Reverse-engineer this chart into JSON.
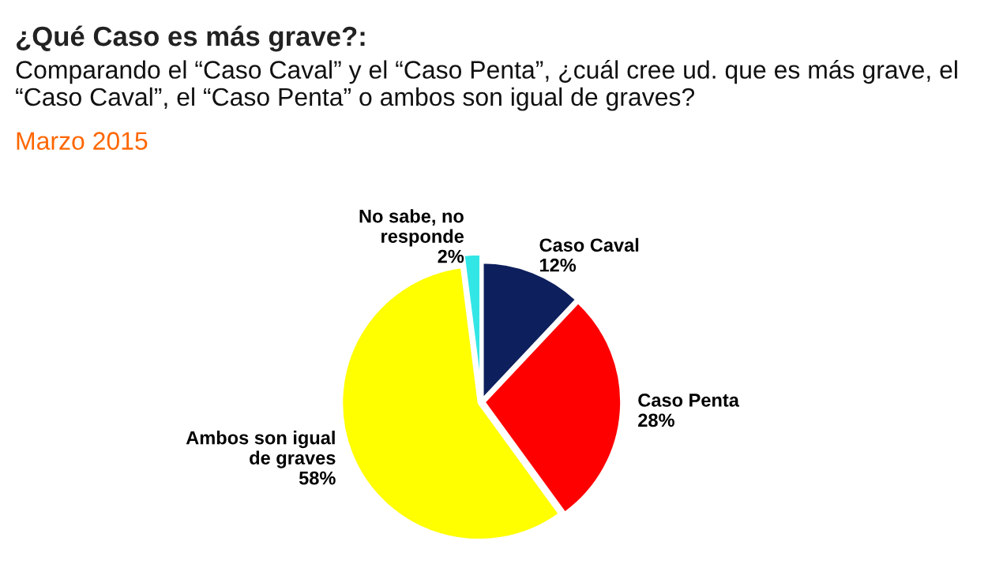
{
  "chart_data": {
    "type": "pie",
    "title": "¿Qué Caso es más grave?:",
    "subtitle": "Comparando el “Caso Caval” y el “Caso Penta”, ¿cuál cree ud. que es más grave, el “Caso Caval”, el “Caso Penta” o ambos son igual de graves?",
    "annotations": [
      "Marzo 2015"
    ],
    "categories": [
      "Caso Caval",
      "Caso Penta",
      "Ambos son igual\nde graves",
      "No sabe, no\nresponde"
    ],
    "values": [
      12,
      28,
      58,
      2
    ],
    "value_labels": [
      "12%",
      "28%",
      "58%",
      "2%"
    ],
    "colors": [
      "#0d1f5c",
      "#ff0000",
      "#ffff00",
      "#33e6e6"
    ]
  }
}
